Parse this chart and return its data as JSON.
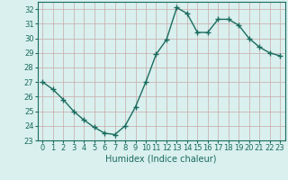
{
  "x": [
    0,
    1,
    2,
    3,
    4,
    5,
    6,
    7,
    8,
    9,
    10,
    11,
    12,
    13,
    14,
    15,
    16,
    17,
    18,
    19,
    20,
    21,
    22,
    23
  ],
  "y": [
    27.0,
    26.5,
    25.8,
    25.0,
    24.4,
    23.9,
    23.5,
    23.4,
    24.0,
    25.3,
    27.0,
    28.9,
    29.9,
    32.1,
    31.7,
    30.4,
    30.4,
    31.3,
    31.3,
    30.9,
    30.0,
    29.4,
    29.0,
    28.8
  ],
  "line_color": "#1a6b5e",
  "bg_color": "#d9f0ee",
  "grid_color_major": "#c9a8a8",
  "grid_color_minor": "#c9a8a8",
  "xlabel": "Humidex (Indice chaleur)",
  "ylim": [
    23,
    32.5
  ],
  "xlim": [
    -0.5,
    23.5
  ],
  "yticks": [
    23,
    24,
    25,
    26,
    27,
    28,
    29,
    30,
    31,
    32
  ],
  "xticks": [
    0,
    1,
    2,
    3,
    4,
    5,
    6,
    7,
    8,
    9,
    10,
    11,
    12,
    13,
    14,
    15,
    16,
    17,
    18,
    19,
    20,
    21,
    22,
    23
  ],
  "marker": "+",
  "linewidth": 1.0,
  "markersize": 4,
  "xlabel_fontsize": 7,
  "tick_fontsize": 6
}
